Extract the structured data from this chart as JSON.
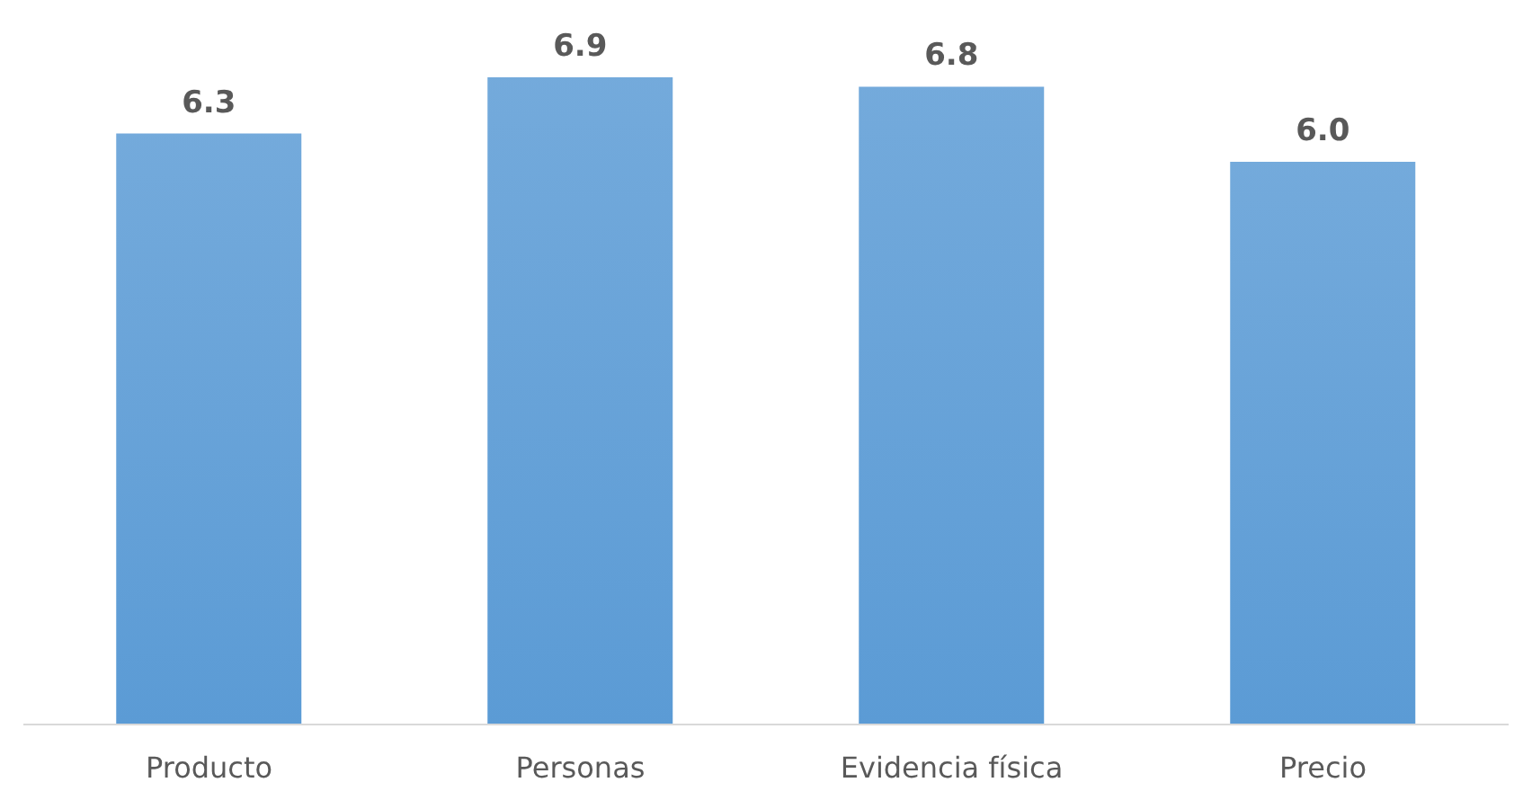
{
  "chart_data": {
    "type": "bar",
    "categories": [
      "Producto",
      "Personas",
      "Evidencia física",
      "Precio"
    ],
    "values": [
      6.3,
      6.9,
      6.8,
      6.0
    ],
    "value_labels": [
      "6.3",
      "6.9",
      "6.8",
      "6.0"
    ],
    "color": "#5b9bd5",
    "tick_labels": "x"
  }
}
